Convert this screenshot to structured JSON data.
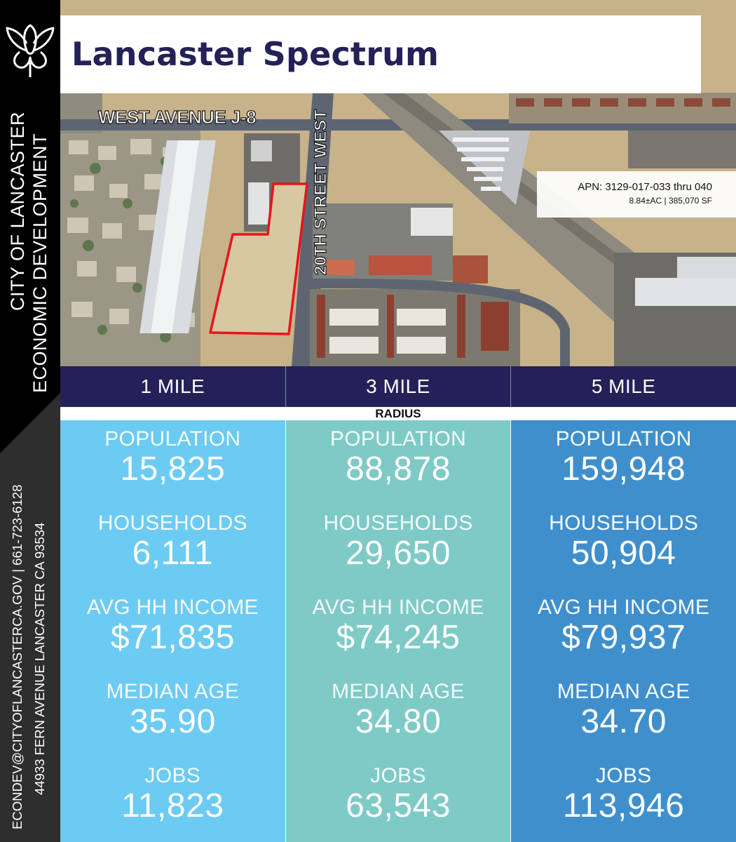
{
  "organization": {
    "name": "CITY OF LANCASTER",
    "department": "ECONOMIC DEVELOPMENT",
    "contact": "ECONDEV@CITYOFLANCASTERCA.GOV | 661-723-6128",
    "address": "44933 FERN AVENUE LANCASTER CA 93534"
  },
  "title": "Lancaster Spectrum",
  "map": {
    "street_horizontal": "WEST AVENUE J-8",
    "street_vertical": "20TH STREET WEST",
    "apn": "APN: 3129-017-033 thru 040",
    "acreage": "8.84±AC | 385,070 SF"
  },
  "radius": {
    "label": "RADIUS",
    "columns": [
      "1 MILE",
      "3 MILE",
      "5 MILE"
    ]
  },
  "stats": {
    "labels": {
      "population": "POPULATION",
      "households": "HOUSEHOLDS",
      "income": "AVG HH INCOME",
      "age": "MEDIAN AGE",
      "jobs": "JOBS"
    },
    "mile1": {
      "population": "15,825",
      "households": "6,111",
      "income": "$71,835",
      "age": "35.90",
      "jobs": "11,823"
    },
    "mile3": {
      "population": "88,878",
      "households": "29,650",
      "income": "$74,245",
      "age": "34.80",
      "jobs": "63,543"
    },
    "mile5": {
      "population": "159,948",
      "households": "50,904",
      "income": "$79,937",
      "age": "34.70",
      "jobs": "113,946"
    }
  },
  "colors": {
    "navy": "#232158",
    "col1": "#6ccbf2",
    "col2": "#7ecac6",
    "col3": "#3f8fcd",
    "parcel_outline": "#e8141b"
  }
}
